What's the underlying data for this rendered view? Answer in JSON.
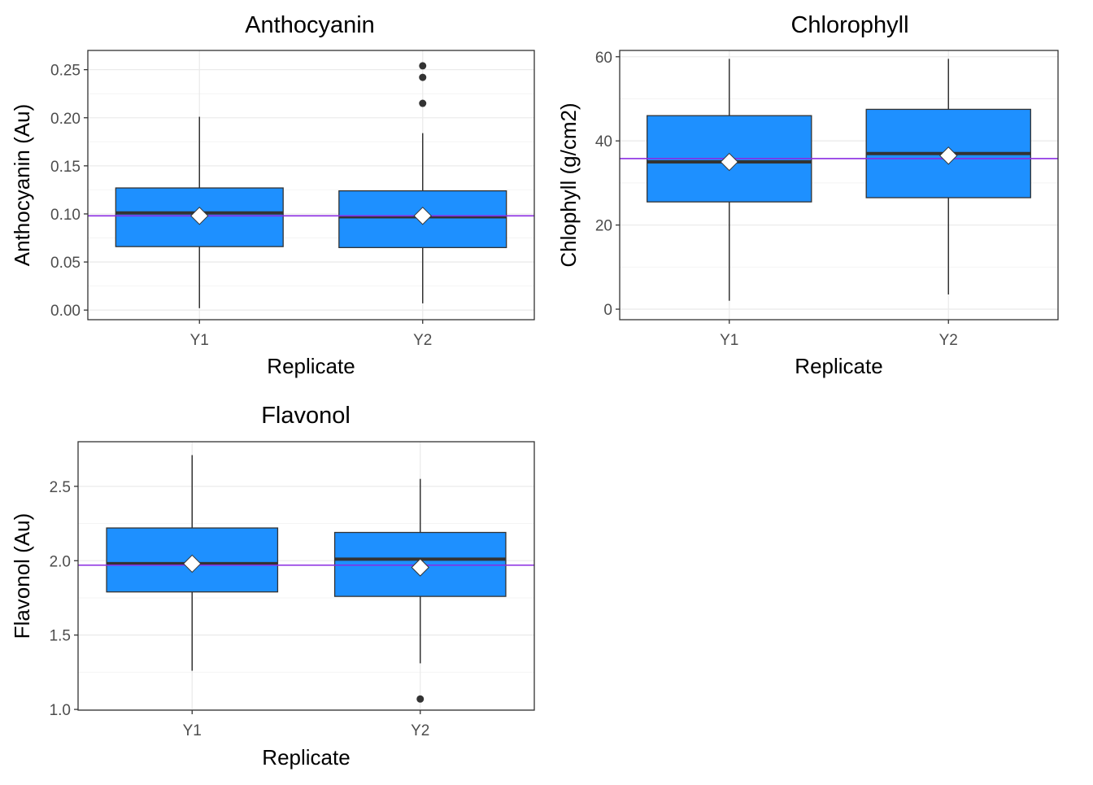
{
  "chart_data": [
    {
      "type": "boxplot",
      "title": "Anthocyanin",
      "xlabel": "Replicate",
      "ylabel": "Anthocyanin (Au)",
      "ylim": [
        -0.01,
        0.27
      ],
      "yticks": [
        0.0,
        0.05,
        0.1,
        0.15,
        0.2,
        0.25
      ],
      "ytick_labels": [
        "0.00",
        "0.05",
        "0.10",
        "0.15",
        "0.20",
        "0.25"
      ],
      "categories": [
        "Y1",
        "Y2"
      ],
      "boxes": [
        {
          "category": "Y1",
          "whisker_low": 0.002,
          "q1": 0.066,
          "median": 0.101,
          "q3": 0.127,
          "whisker_high": 0.201,
          "mean": 0.098,
          "outliers": []
        },
        {
          "category": "Y2",
          "whisker_low": 0.007,
          "q1": 0.065,
          "median": 0.097,
          "q3": 0.124,
          "whisker_high": 0.184,
          "mean": 0.098,
          "outliers": [
            0.215,
            0.242,
            0.254
          ]
        }
      ],
      "hline": 0.098,
      "grid": true
    },
    {
      "type": "boxplot",
      "title": "Chlorophyll",
      "xlabel": "Replicate",
      "ylabel": "Chlophyll (g/cm2)",
      "ylim": [
        -2.5,
        61.5
      ],
      "yticks": [
        0,
        20,
        40,
        60
      ],
      "ytick_labels": [
        "0",
        "20",
        "40",
        "60"
      ],
      "categories": [
        "Y1",
        "Y2"
      ],
      "boxes": [
        {
          "category": "Y1",
          "whisker_low": 2.0,
          "q1": 25.5,
          "median": 35.0,
          "q3": 46.0,
          "whisker_high": 59.5,
          "mean": 35.0,
          "outliers": []
        },
        {
          "category": "Y2",
          "whisker_low": 3.5,
          "q1": 26.5,
          "median": 37.0,
          "q3": 47.5,
          "whisker_high": 59.5,
          "mean": 36.5,
          "outliers": []
        }
      ],
      "hline": 35.8,
      "grid": true
    },
    {
      "type": "boxplot",
      "title": "Flavonol",
      "xlabel": "Replicate",
      "ylabel": "Flavonol (Au)",
      "ylim": [
        0.995,
        2.8
      ],
      "yticks": [
        1.0,
        1.5,
        2.0,
        2.5
      ],
      "ytick_labels": [
        "1.0",
        "1.5",
        "2.0",
        "2.5"
      ],
      "categories": [
        "Y1",
        "Y2"
      ],
      "boxes": [
        {
          "category": "Y1",
          "whisker_low": 1.26,
          "q1": 1.79,
          "median": 1.98,
          "q3": 2.22,
          "whisker_high": 2.71,
          "mean": 1.98,
          "outliers": []
        },
        {
          "category": "Y2",
          "whisker_low": 1.31,
          "q1": 1.76,
          "median": 2.01,
          "q3": 2.19,
          "whisker_high": 2.55,
          "mean": 1.955,
          "outliers": [
            1.07
          ]
        }
      ],
      "hline": 1.97,
      "grid": true
    }
  ],
  "colors": {
    "box_fill": "#1e90ff",
    "box_stroke": "#333333",
    "median": "#333333",
    "mean_marker": "#ffffff",
    "hline": "#8a2be2",
    "outlier": "#333333",
    "grid_major": "#ebebeb",
    "grid_minor": "#f4f4f4",
    "panel_border": "#333333"
  }
}
